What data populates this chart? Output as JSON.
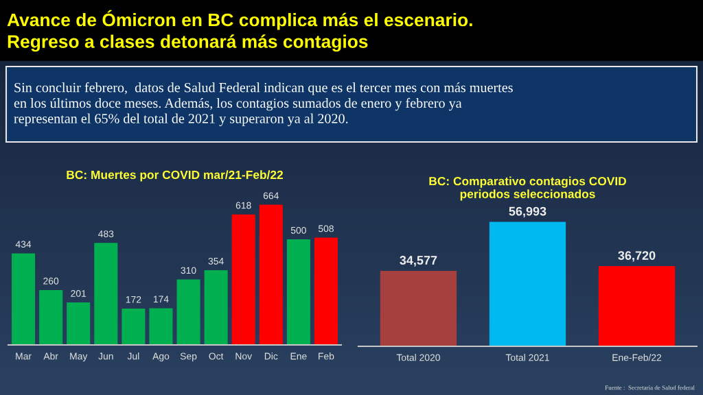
{
  "chart_data": [
    {
      "type": "bar",
      "title": "BC: Muertes por COVID mar/21-Feb/22",
      "categories": [
        "Mar",
        "Abr",
        "May",
        "Jun",
        "Jul",
        "Ago",
        "Sep",
        "Oct",
        "Nov",
        "Dic",
        "Ene",
        "Feb"
      ],
      "values": [
        434,
        260,
        201,
        483,
        172,
        174,
        310,
        354,
        618,
        664,
        500,
        508
      ],
      "colors": [
        "#00b050",
        "#00b050",
        "#00b050",
        "#00b050",
        "#00b050",
        "#00b050",
        "#00b050",
        "#00b050",
        "#ff0000",
        "#ff0000",
        "#00b050",
        "#ff0000"
      ],
      "data_labels": true,
      "grid": false,
      "legend": false,
      "annotations": [
        "Avance de Ómicron en BC complica más el escenario.\nRegreso a clases detonará más contagios",
        "Sin concluir febrero,  datos de Salud Federal indican que es el tercer mes con más muertes\nen los últimos doce meses. Además, los contagios sumados de enero y febrero ya\nrepresentan el 65% del total de 2021 y superaron ya al 2020."
      ]
    },
    {
      "type": "bar",
      "title": "BC: Comparativo contagios COVID\nperiodos seleccionados",
      "categories": [
        "Total 2020",
        "Total 2021",
        "Ene-Feb/22"
      ],
      "values": [
        34577,
        56993,
        36720
      ],
      "colors": [
        "#a5403f",
        "#00b8f0",
        "#ff0000"
      ],
      "value_labels": [
        "34,577",
        "56,993",
        "36,720"
      ],
      "grid": false,
      "legend": false,
      "annotations": [
        "Fuente :  Secretaría de Salud federal"
      ]
    }
  ]
}
